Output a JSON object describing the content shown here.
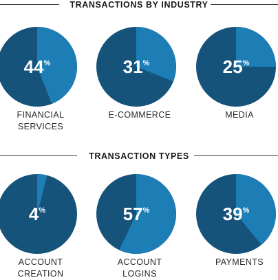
{
  "colors": {
    "dark": "#16537b",
    "light": "#1d7db5"
  },
  "sections": [
    {
      "title": "TRANSACTIONS BY INDUSTRY"
    },
    {
      "title": "TRANSACTION TYPES"
    }
  ],
  "chart_data": [
    {
      "type": "pie",
      "title": "TRANSACTIONS BY INDUSTRY",
      "pies": [
        {
          "label": [
            "FINANCIAL",
            "SERVICES"
          ],
          "value": 44,
          "display": "44",
          "unit": "%"
        },
        {
          "label": [
            "E-COMMERCE"
          ],
          "value": 31,
          "display": "31",
          "unit": "%"
        },
        {
          "label": [
            "MEDIA"
          ],
          "value": 25,
          "display": "25",
          "unit": "%"
        }
      ]
    },
    {
      "type": "pie",
      "title": "TRANSACTION TYPES",
      "pies": [
        {
          "label": [
            "ACCOUNT",
            "CREATION"
          ],
          "value": 4,
          "display": "4",
          "unit": "%"
        },
        {
          "label": [
            "ACCOUNT",
            "LOGINS"
          ],
          "value": 57,
          "display": "57",
          "unit": "%"
        },
        {
          "label": [
            "PAYMENTS"
          ],
          "value": 39,
          "display": "39",
          "unit": "%"
        }
      ]
    }
  ]
}
